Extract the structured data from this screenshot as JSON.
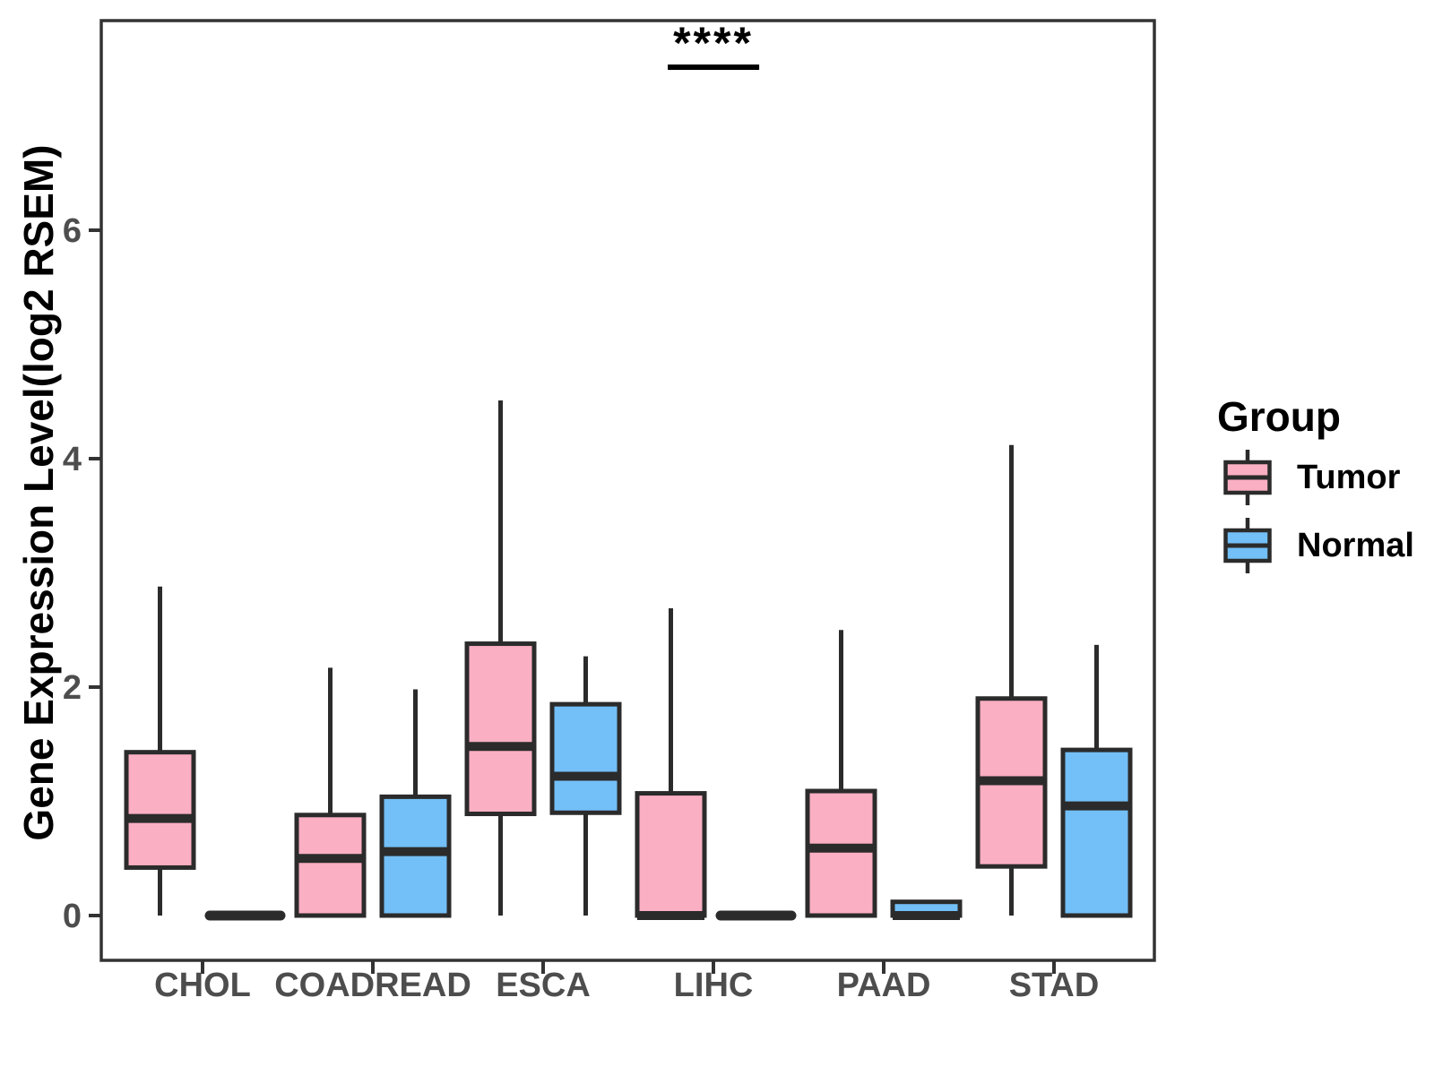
{
  "chart_data": {
    "type": "boxplot",
    "title": "",
    "ylabel": "Gene Expression Level(log2 RSEM)",
    "xlabel": "",
    "categories": [
      "CHOL",
      "COADREAD",
      "ESCA",
      "LIHC",
      "PAAD",
      "STAD"
    ],
    "y_ticks": [
      0,
      2,
      4,
      6
    ],
    "ylim": [
      -0.39,
      7.84
    ],
    "grid": false,
    "legend": {
      "title": "Group",
      "position": "right"
    },
    "series": [
      {
        "name": "Tumor",
        "color": "#FBAFC3",
        "boxes": [
          {
            "category": "CHOL",
            "min": 0,
            "q1": 0.42,
            "med": 0.85,
            "q3": 1.43,
            "max": 2.88
          },
          {
            "category": "COADREAD",
            "min": 0,
            "q1": 0.0,
            "med": 0.5,
            "q3": 0.88,
            "max": 2.17
          },
          {
            "category": "ESCA",
            "min": 0,
            "q1": 0.89,
            "med": 1.48,
            "q3": 2.38,
            "max": 4.51
          },
          {
            "category": "LIHC",
            "min": 0,
            "q1": 0.0,
            "med": 0.0,
            "q3": 1.07,
            "max": 2.69
          },
          {
            "category": "PAAD",
            "min": 0,
            "q1": 0.0,
            "med": 0.59,
            "q3": 1.09,
            "max": 2.5
          },
          {
            "category": "STAD",
            "min": 0,
            "q1": 0.43,
            "med": 1.18,
            "q3": 1.9,
            "max": 4.12
          }
        ]
      },
      {
        "name": "Normal",
        "color": "#73BFF7",
        "boxes": [
          {
            "category": "CHOL",
            "min": 0,
            "q1": 0.0,
            "med": 0.0,
            "q3": 0.0,
            "max": 0.0
          },
          {
            "category": "COADREAD",
            "min": 0,
            "q1": 0.0,
            "med": 0.56,
            "q3": 1.04,
            "max": 1.98
          },
          {
            "category": "ESCA",
            "min": 0,
            "q1": 0.9,
            "med": 1.22,
            "q3": 1.85,
            "max": 2.27
          },
          {
            "category": "LIHC",
            "min": 0,
            "q1": 0.0,
            "med": 0.0,
            "q3": 0.0,
            "max": 0.0
          },
          {
            "category": "PAAD",
            "min": 0,
            "q1": 0.0,
            "med": 0.0,
            "q3": 0.12,
            "max": 0.12
          },
          {
            "category": "STAD",
            "min": 0,
            "q1": 0.0,
            "med": 0.96,
            "q3": 1.45,
            "max": 2.37
          }
        ]
      }
    ],
    "annotation": {
      "text": "****",
      "category": "LIHC"
    }
  },
  "colors": {
    "box_border": "#2B2B2B",
    "panel_border": "#333333",
    "tick_mark": "#333333",
    "tick_label": "#4D4D4D",
    "axis_title": "#000000",
    "background": "#FFFFFF"
  }
}
